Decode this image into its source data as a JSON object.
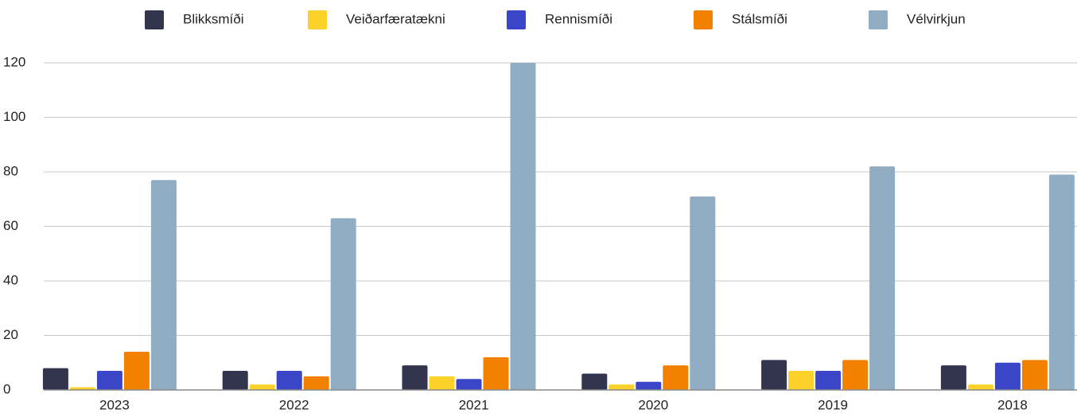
{
  "chart_data": {
    "type": "bar",
    "categories": [
      "2023",
      "2022",
      "2021",
      "2020",
      "2019",
      "2018"
    ],
    "series": [
      {
        "name": "Blikksmíði",
        "color": "#33354f",
        "values": [
          8,
          7,
          9,
          6,
          11,
          9
        ]
      },
      {
        "name": "Veiðarfæratækni",
        "color": "#fcd22a",
        "values": [
          1,
          2,
          5,
          2,
          7,
          2
        ]
      },
      {
        "name": "Rennismíði",
        "color": "#3a45c8",
        "values": [
          7,
          7,
          4,
          3,
          7,
          10
        ]
      },
      {
        "name": "Stálsmíði",
        "color": "#f28100",
        "values": [
          14,
          5,
          12,
          9,
          11,
          11
        ]
      },
      {
        "name": "Vélvirkjun",
        "color": "#91adc4",
        "values": [
          77,
          63,
          120,
          71,
          82,
          79
        ]
      }
    ],
    "ylim": [
      0,
      120
    ],
    "yticks": [
      0,
      20,
      40,
      60,
      80,
      100,
      120
    ],
    "grid": true,
    "legend": "top"
  }
}
